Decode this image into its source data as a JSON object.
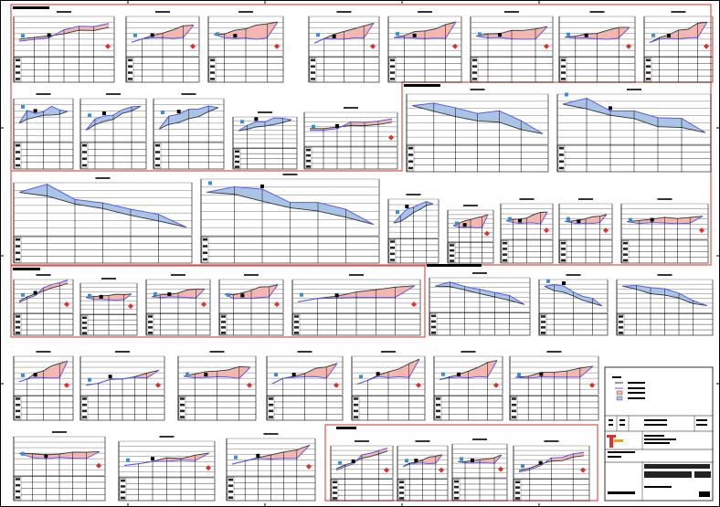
{
  "sheet": {
    "kind": "cross-section profile drawing sheet",
    "colors": {
      "group_border": "#d9534f",
      "ground_line": "#333333",
      "design_line": "#5a5cf0",
      "cut_fill": "#f4b6b0",
      "fill_fill": "#a9c4e4",
      "grid": "#555555",
      "marker_red": "#e0302a",
      "marker_blue": "#3a8fd0",
      "logo_red": "#e0302a",
      "logo_orange": "#f0a020"
    }
  }
}
